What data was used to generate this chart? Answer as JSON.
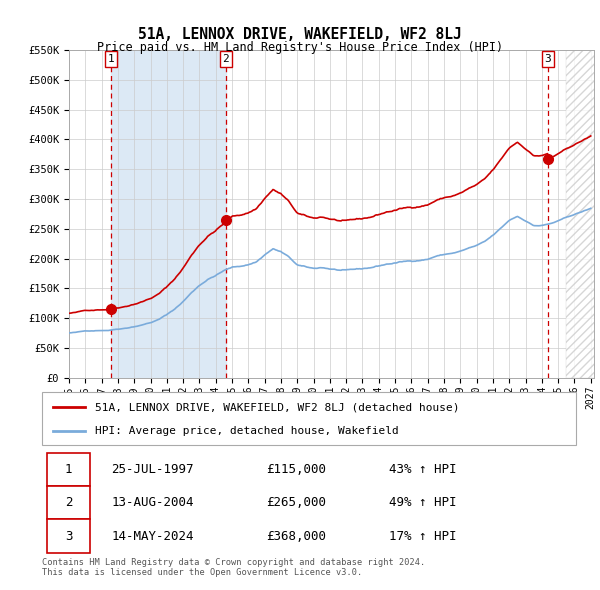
{
  "title": "51A, LENNOX DRIVE, WAKEFIELD, WF2 8LJ",
  "subtitle": "Price paid vs. HM Land Registry's House Price Index (HPI)",
  "ylim": [
    0,
    550000
  ],
  "xlim_start": 1995.3,
  "xlim_end": 2027.2,
  "hpi_color": "#7aabdb",
  "price_color": "#cc0000",
  "vline_color": "#cc0000",
  "shade_color": "#dce9f5",
  "purchases": [
    {
      "date_num": 1997.57,
      "price": 115000,
      "label": "1"
    },
    {
      "date_num": 2004.62,
      "price": 265000,
      "label": "2"
    },
    {
      "date_num": 2024.37,
      "price": 368000,
      "label": "3"
    }
  ],
  "legend_entries": [
    {
      "label": "51A, LENNOX DRIVE, WAKEFIELD, WF2 8LJ (detached house)",
      "color": "#cc0000"
    },
    {
      "label": "HPI: Average price, detached house, Wakefield",
      "color": "#7aabdb"
    }
  ],
  "table_rows": [
    {
      "num": "1",
      "date": "25-JUL-1997",
      "price": "£115,000",
      "hpi": "43% ↑ HPI"
    },
    {
      "num": "2",
      "date": "13-AUG-2004",
      "price": "£265,000",
      "hpi": "49% ↑ HPI"
    },
    {
      "num": "3",
      "date": "14-MAY-2024",
      "price": "£368,000",
      "hpi": "17% ↑ HPI"
    }
  ],
  "footer": "Contains HM Land Registry data © Crown copyright and database right 2024.\nThis data is licensed under the Open Government Licence v3.0.",
  "background_color": "#ffffff",
  "grid_color": "#cccccc"
}
